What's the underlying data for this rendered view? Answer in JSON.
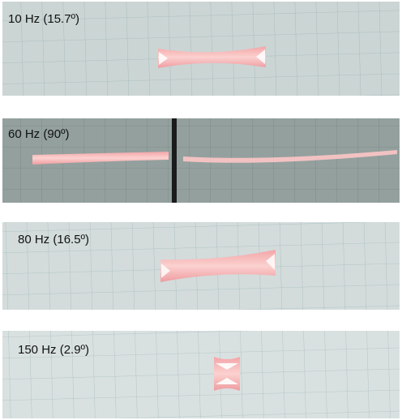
{
  "panels": [
    {
      "label": "10 Hz (15.7º)"
    },
    {
      "label": "60 Hz (90º)"
    },
    {
      "label": "80 Hz (16.5º)"
    },
    {
      "label": "150 Hz (2.9º)"
    }
  ]
}
